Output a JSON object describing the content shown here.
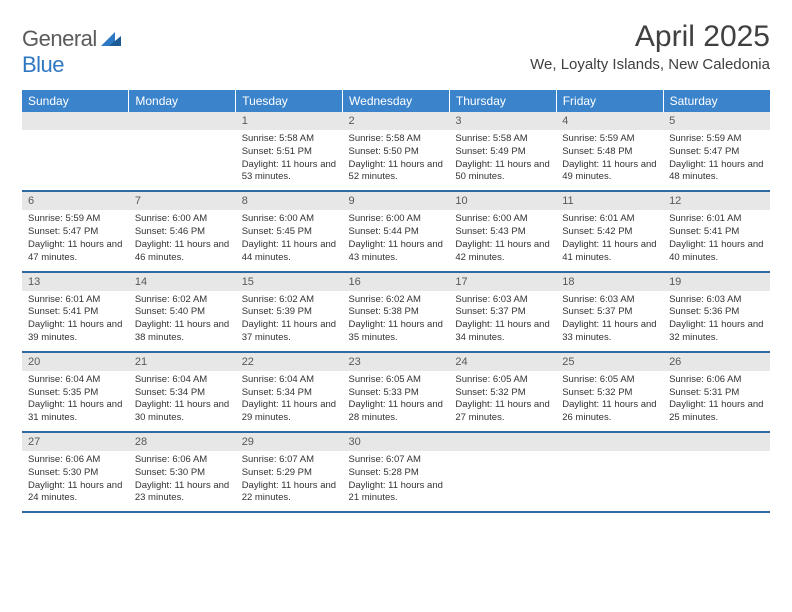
{
  "logo": {
    "general": "General",
    "blue": "Blue"
  },
  "title": "April 2025",
  "location": "We, Loyalty Islands, New Caledonia",
  "colors": {
    "header_bg": "#3b84cc",
    "header_text": "#ffffff",
    "band_bg": "#e7e7e7",
    "band_text": "#595959",
    "rule": "#2f6aa3",
    "logo_general": "#5a5a5a",
    "logo_blue": "#2f78c3",
    "title_text": "#404040"
  },
  "daysOfWeek": [
    "Sunday",
    "Monday",
    "Tuesday",
    "Wednesday",
    "Thursday",
    "Friday",
    "Saturday"
  ],
  "weeks": [
    [
      {
        "blank": true
      },
      {
        "blank": true
      },
      {
        "num": "1",
        "sunrise": "Sunrise: 5:58 AM",
        "sunset": "Sunset: 5:51 PM",
        "daylight": "Daylight: 11 hours and 53 minutes."
      },
      {
        "num": "2",
        "sunrise": "Sunrise: 5:58 AM",
        "sunset": "Sunset: 5:50 PM",
        "daylight": "Daylight: 11 hours and 52 minutes."
      },
      {
        "num": "3",
        "sunrise": "Sunrise: 5:58 AM",
        "sunset": "Sunset: 5:49 PM",
        "daylight": "Daylight: 11 hours and 50 minutes."
      },
      {
        "num": "4",
        "sunrise": "Sunrise: 5:59 AM",
        "sunset": "Sunset: 5:48 PM",
        "daylight": "Daylight: 11 hours and 49 minutes."
      },
      {
        "num": "5",
        "sunrise": "Sunrise: 5:59 AM",
        "sunset": "Sunset: 5:47 PM",
        "daylight": "Daylight: 11 hours and 48 minutes."
      }
    ],
    [
      {
        "num": "6",
        "sunrise": "Sunrise: 5:59 AM",
        "sunset": "Sunset: 5:47 PM",
        "daylight": "Daylight: 11 hours and 47 minutes."
      },
      {
        "num": "7",
        "sunrise": "Sunrise: 6:00 AM",
        "sunset": "Sunset: 5:46 PM",
        "daylight": "Daylight: 11 hours and 46 minutes."
      },
      {
        "num": "8",
        "sunrise": "Sunrise: 6:00 AM",
        "sunset": "Sunset: 5:45 PM",
        "daylight": "Daylight: 11 hours and 44 minutes."
      },
      {
        "num": "9",
        "sunrise": "Sunrise: 6:00 AM",
        "sunset": "Sunset: 5:44 PM",
        "daylight": "Daylight: 11 hours and 43 minutes."
      },
      {
        "num": "10",
        "sunrise": "Sunrise: 6:00 AM",
        "sunset": "Sunset: 5:43 PM",
        "daylight": "Daylight: 11 hours and 42 minutes."
      },
      {
        "num": "11",
        "sunrise": "Sunrise: 6:01 AM",
        "sunset": "Sunset: 5:42 PM",
        "daylight": "Daylight: 11 hours and 41 minutes."
      },
      {
        "num": "12",
        "sunrise": "Sunrise: 6:01 AM",
        "sunset": "Sunset: 5:41 PM",
        "daylight": "Daylight: 11 hours and 40 minutes."
      }
    ],
    [
      {
        "num": "13",
        "sunrise": "Sunrise: 6:01 AM",
        "sunset": "Sunset: 5:41 PM",
        "daylight": "Daylight: 11 hours and 39 minutes."
      },
      {
        "num": "14",
        "sunrise": "Sunrise: 6:02 AM",
        "sunset": "Sunset: 5:40 PM",
        "daylight": "Daylight: 11 hours and 38 minutes."
      },
      {
        "num": "15",
        "sunrise": "Sunrise: 6:02 AM",
        "sunset": "Sunset: 5:39 PM",
        "daylight": "Daylight: 11 hours and 37 minutes."
      },
      {
        "num": "16",
        "sunrise": "Sunrise: 6:02 AM",
        "sunset": "Sunset: 5:38 PM",
        "daylight": "Daylight: 11 hours and 35 minutes."
      },
      {
        "num": "17",
        "sunrise": "Sunrise: 6:03 AM",
        "sunset": "Sunset: 5:37 PM",
        "daylight": "Daylight: 11 hours and 34 minutes."
      },
      {
        "num": "18",
        "sunrise": "Sunrise: 6:03 AM",
        "sunset": "Sunset: 5:37 PM",
        "daylight": "Daylight: 11 hours and 33 minutes."
      },
      {
        "num": "19",
        "sunrise": "Sunrise: 6:03 AM",
        "sunset": "Sunset: 5:36 PM",
        "daylight": "Daylight: 11 hours and 32 minutes."
      }
    ],
    [
      {
        "num": "20",
        "sunrise": "Sunrise: 6:04 AM",
        "sunset": "Sunset: 5:35 PM",
        "daylight": "Daylight: 11 hours and 31 minutes."
      },
      {
        "num": "21",
        "sunrise": "Sunrise: 6:04 AM",
        "sunset": "Sunset: 5:34 PM",
        "daylight": "Daylight: 11 hours and 30 minutes."
      },
      {
        "num": "22",
        "sunrise": "Sunrise: 6:04 AM",
        "sunset": "Sunset: 5:34 PM",
        "daylight": "Daylight: 11 hours and 29 minutes."
      },
      {
        "num": "23",
        "sunrise": "Sunrise: 6:05 AM",
        "sunset": "Sunset: 5:33 PM",
        "daylight": "Daylight: 11 hours and 28 minutes."
      },
      {
        "num": "24",
        "sunrise": "Sunrise: 6:05 AM",
        "sunset": "Sunset: 5:32 PM",
        "daylight": "Daylight: 11 hours and 27 minutes."
      },
      {
        "num": "25",
        "sunrise": "Sunrise: 6:05 AM",
        "sunset": "Sunset: 5:32 PM",
        "daylight": "Daylight: 11 hours and 26 minutes."
      },
      {
        "num": "26",
        "sunrise": "Sunrise: 6:06 AM",
        "sunset": "Sunset: 5:31 PM",
        "daylight": "Daylight: 11 hours and 25 minutes."
      }
    ],
    [
      {
        "num": "27",
        "sunrise": "Sunrise: 6:06 AM",
        "sunset": "Sunset: 5:30 PM",
        "daylight": "Daylight: 11 hours and 24 minutes."
      },
      {
        "num": "28",
        "sunrise": "Sunrise: 6:06 AM",
        "sunset": "Sunset: 5:30 PM",
        "daylight": "Daylight: 11 hours and 23 minutes."
      },
      {
        "num": "29",
        "sunrise": "Sunrise: 6:07 AM",
        "sunset": "Sunset: 5:29 PM",
        "daylight": "Daylight: 11 hours and 22 minutes."
      },
      {
        "num": "30",
        "sunrise": "Sunrise: 6:07 AM",
        "sunset": "Sunset: 5:28 PM",
        "daylight": "Daylight: 11 hours and 21 minutes."
      },
      {
        "blank": true
      },
      {
        "blank": true
      },
      {
        "blank": true
      }
    ]
  ]
}
